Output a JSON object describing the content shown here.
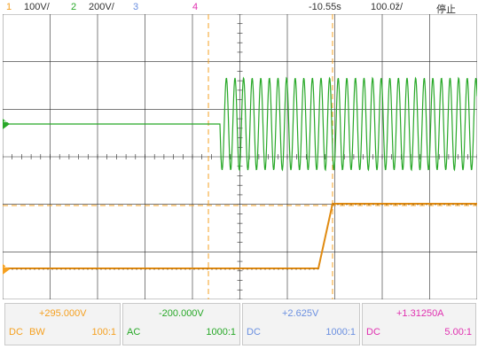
{
  "colors": {
    "ch1": "#f5a020",
    "ch2": "#28a828",
    "ch3": "#6a8fe0",
    "ch4": "#e030b0",
    "grid": "#2a2a2a",
    "cursor": "#f5a020"
  },
  "header": {
    "ch1_num": "1",
    "ch1_scale": "100V/",
    "ch2_num": "2",
    "ch2_scale": "200V/",
    "ch3_num": "3",
    "ch4_num": "4",
    "time_offset": "-10.55s",
    "time_scale": "100.0ž/",
    "run_state": "停止"
  },
  "markers": {
    "ch2": "2",
    "ch1": "1"
  },
  "channels": [
    {
      "offset": "+295.000V",
      "coupling": "DC",
      "bw": "BW",
      "probe": "100:1"
    },
    {
      "offset": "-200.000V",
      "coupling": "AC",
      "bw": "",
      "probe": "1000:1"
    },
    {
      "offset": "+2.625V",
      "coupling": "DC",
      "bw": "",
      "probe": "1000:1"
    },
    {
      "offset": "+1.31250A",
      "coupling": "DC",
      "bw": "",
      "probe": "5.00:1"
    }
  ]
}
